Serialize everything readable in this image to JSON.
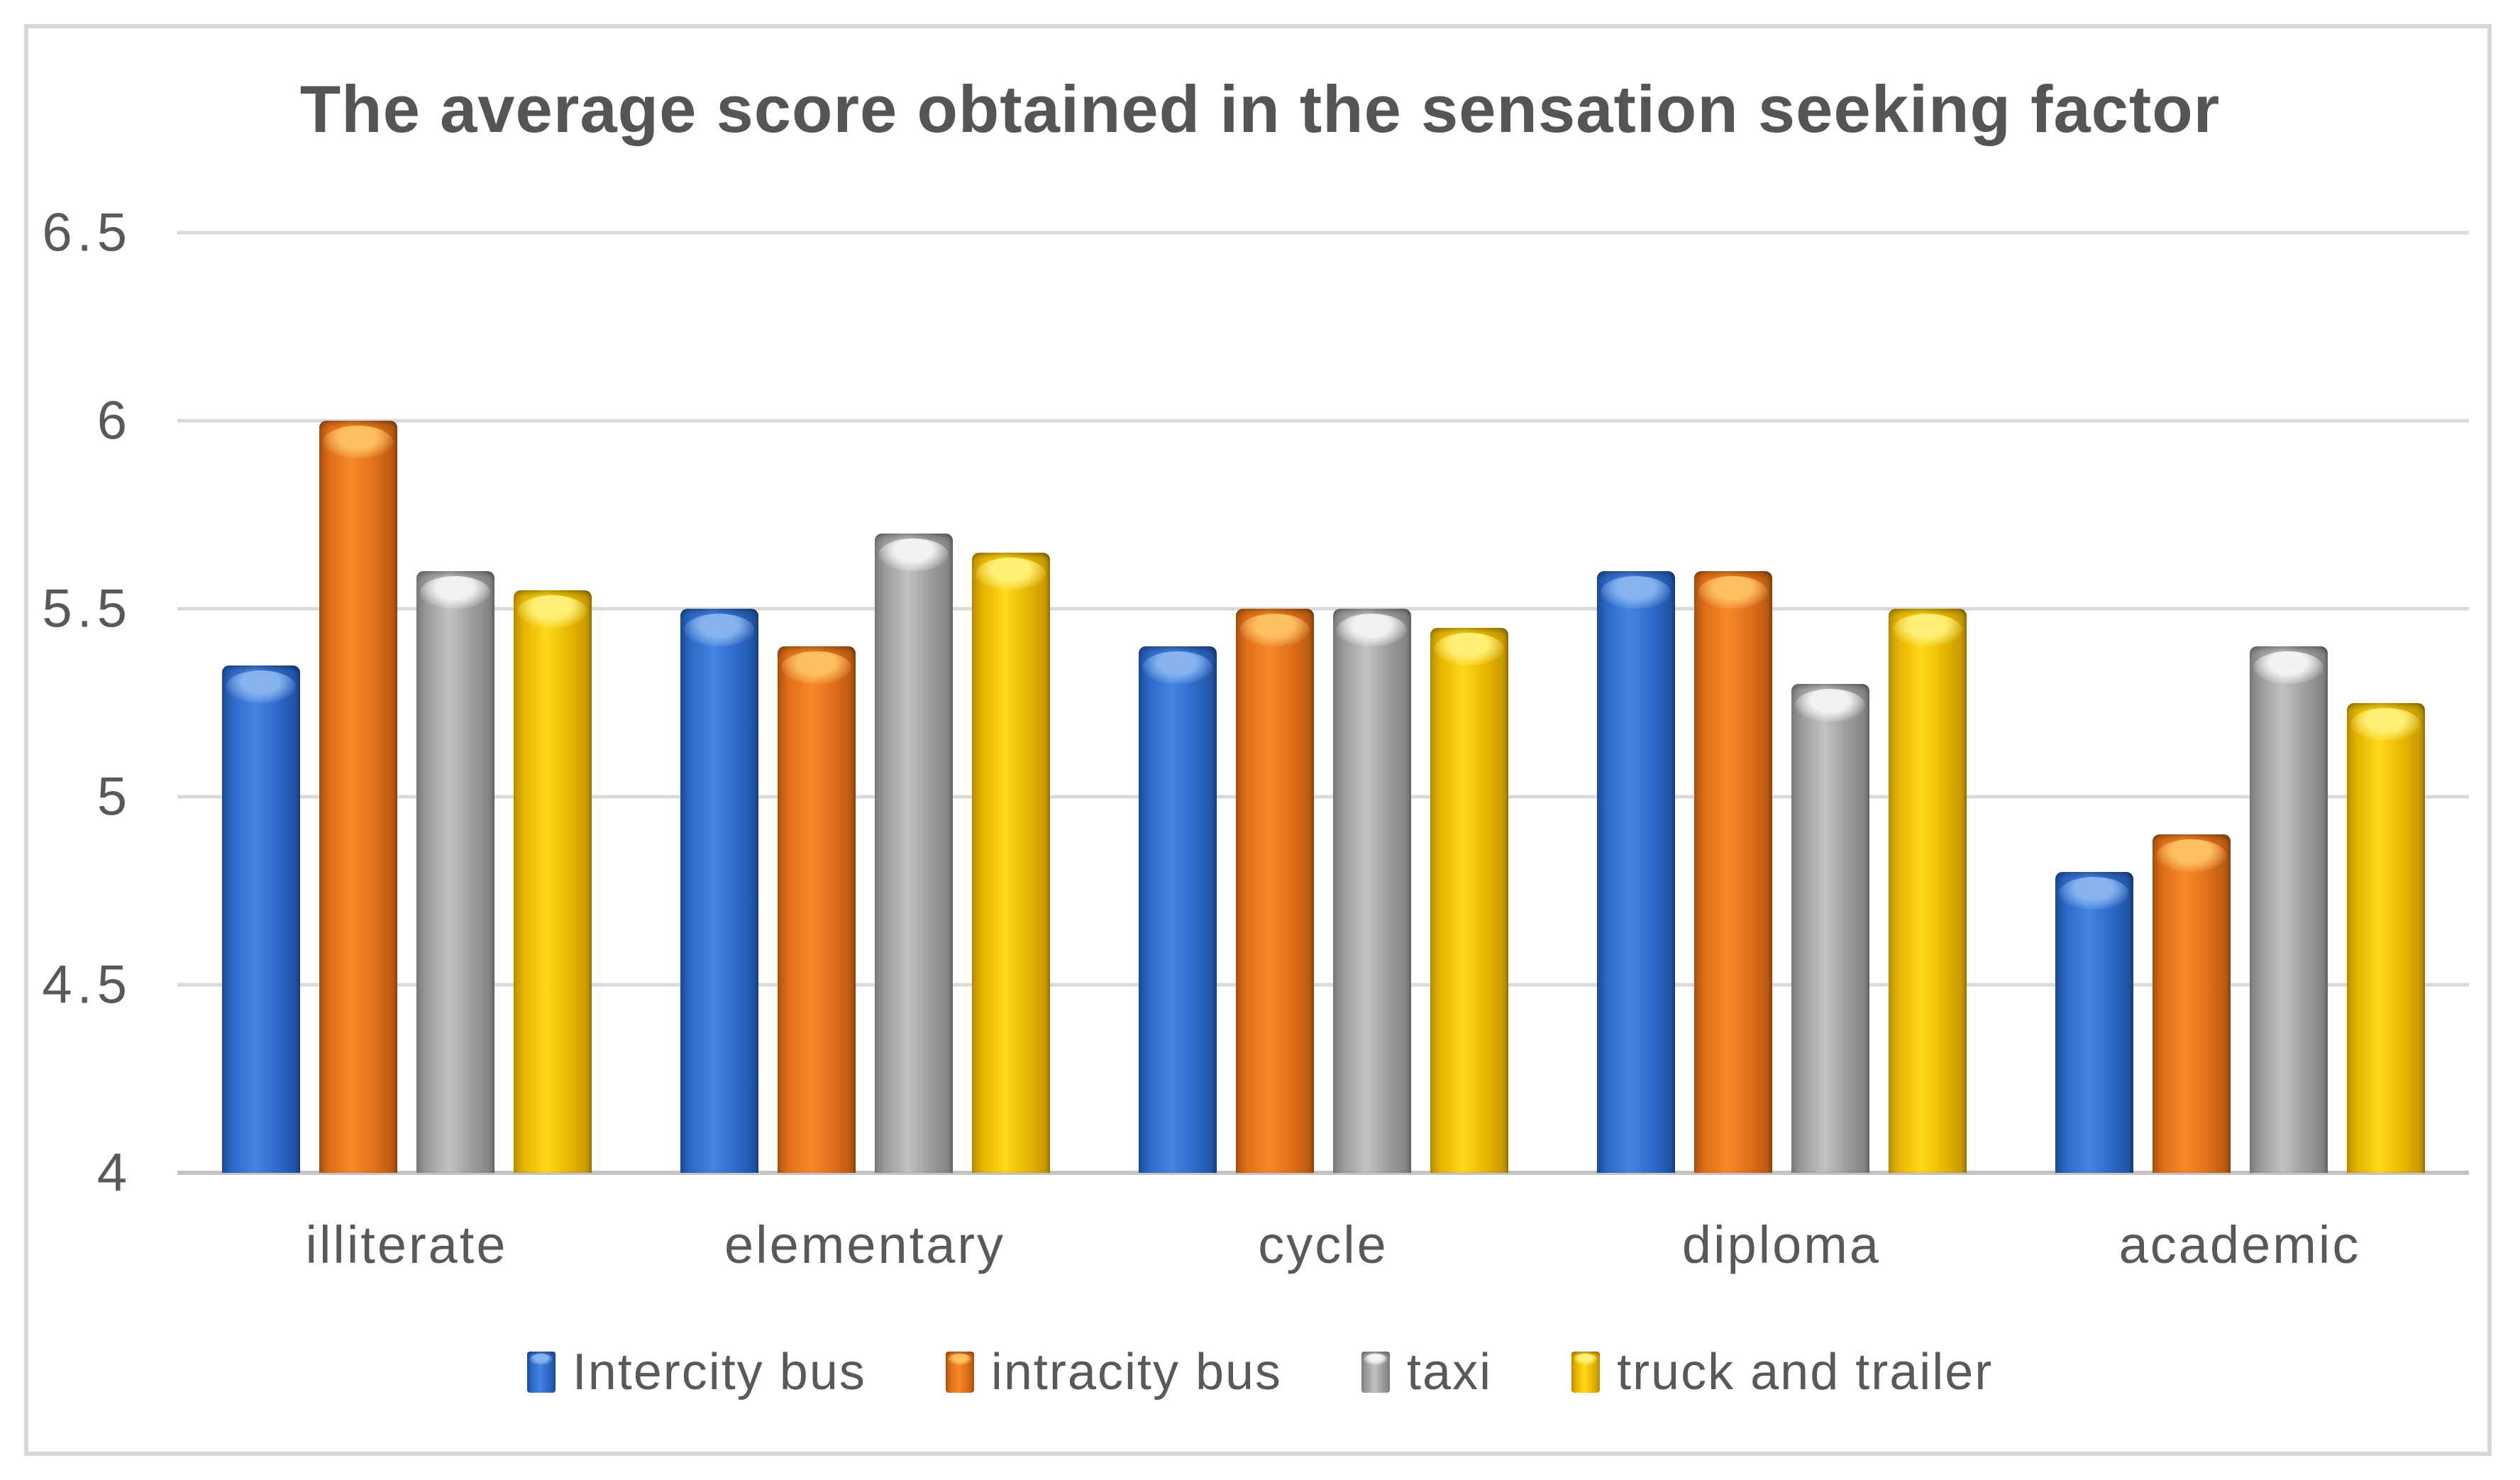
{
  "chart_data": {
    "type": "bar",
    "title": "The average score obtained in the sensation seeking factor",
    "categories": [
      "illiterate",
      "elementary",
      "cycle",
      "diploma",
      "academic"
    ],
    "series": [
      {
        "name": "Intercity bus",
        "values": [
          5.35,
          5.5,
          5.4,
          5.6,
          4.8
        ],
        "color": "#2E6AC8",
        "color_dark": "#1C4E9D",
        "color_light": "#4584E3",
        "color_cap": "#8AB6F0"
      },
      {
        "name": "intracity bus",
        "values": [
          6.0,
          5.4,
          5.5,
          5.6,
          4.9
        ],
        "color": "#E06F1A",
        "color_dark": "#AF5410",
        "color_light": "#F68A28",
        "color_cap": "#FFC266"
      },
      {
        "name": "taxi",
        "values": [
          5.6,
          5.7,
          5.5,
          5.3,
          5.4
        ],
        "color": "#9C9C9C",
        "color_dark": "#7E7E7E",
        "color_light": "#C2C2C2",
        "color_cap": "#F5F5F5"
      },
      {
        "name": "truck and trailer",
        "values": [
          5.55,
          5.65,
          5.45,
          5.5,
          5.25
        ],
        "color": "#E7B500",
        "color_dark": "#BE9200",
        "color_light": "#FFD91A",
        "color_cap": "#FFF17A"
      }
    ],
    "ylim": [
      4,
      6.5
    ],
    "ytick_step": 0.5,
    "ytick_labels": [
      "6.5",
      "6",
      "5.5",
      "5",
      "4.5",
      "4"
    ],
    "grid": true,
    "legend_position": "bottom",
    "text_color": "#595959",
    "gridline_color": "#d9d9d9",
    "axis_line_color": "#c3c3c3",
    "frame_border_color": "#d7d7d7",
    "background_color": "#ffffff"
  }
}
